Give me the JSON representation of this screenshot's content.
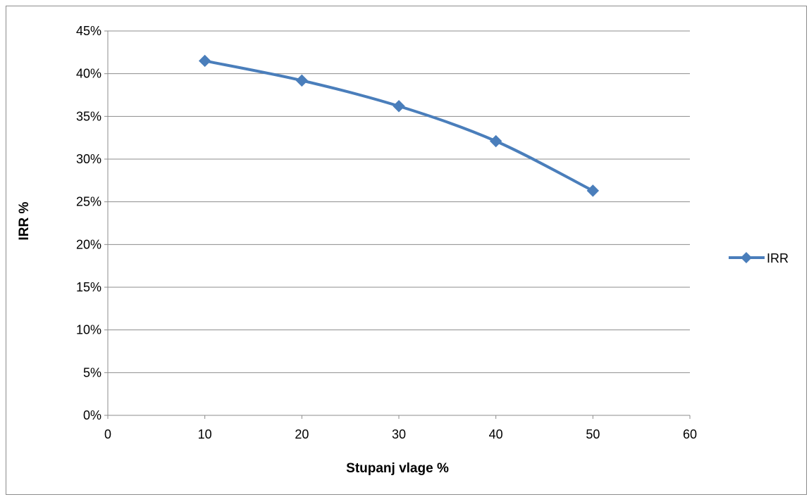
{
  "chart_data": {
    "type": "line",
    "x": [
      10,
      20,
      30,
      40,
      50
    ],
    "series": [
      {
        "name": "IRR",
        "values": [
          41.5,
          39.2,
          36.2,
          32.1,
          26.3
        ],
        "color": "#4a7ebb",
        "marker": "diamond"
      }
    ],
    "xlabel": "Stupanj vlage %",
    "ylabel": "IRR %",
    "xlim": [
      0,
      60
    ],
    "ylim": [
      0,
      45
    ],
    "xticks": [
      0,
      10,
      20,
      30,
      40,
      50,
      60
    ],
    "yticks": [
      0,
      5,
      10,
      15,
      20,
      25,
      30,
      35,
      40,
      45
    ],
    "ytick_labels": [
      "0%",
      "5%",
      "10%",
      "15%",
      "20%",
      "25%",
      "30%",
      "35%",
      "40%",
      "45%"
    ],
    "grid": "horizontal",
    "legend": "right",
    "smooth": true
  }
}
